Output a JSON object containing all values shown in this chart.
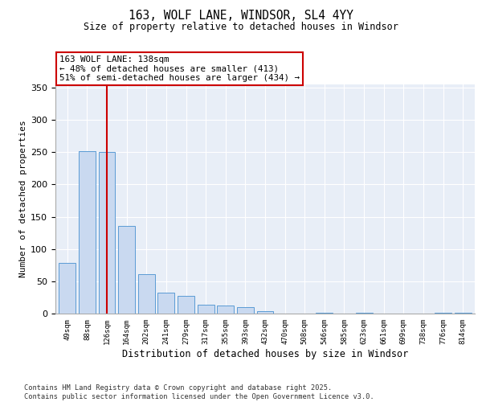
{
  "title_line1": "163, WOLF LANE, WINDSOR, SL4 4YY",
  "title_line2": "Size of property relative to detached houses in Windsor",
  "xlabel": "Distribution of detached houses by size in Windsor",
  "ylabel": "Number of detached properties",
  "categories": [
    "49sqm",
    "88sqm",
    "126sqm",
    "164sqm",
    "202sqm",
    "241sqm",
    "279sqm",
    "317sqm",
    "355sqm",
    "393sqm",
    "432sqm",
    "470sqm",
    "508sqm",
    "546sqm",
    "585sqm",
    "623sqm",
    "661sqm",
    "699sqm",
    "738sqm",
    "776sqm",
    "814sqm"
  ],
  "values": [
    79,
    252,
    250,
    136,
    61,
    33,
    28,
    14,
    12,
    10,
    4,
    0,
    0,
    1,
    0,
    1,
    0,
    0,
    0,
    1,
    1
  ],
  "bar_color": "#c9d9f0",
  "bar_edge_color": "#5b9bd5",
  "vline_x_index": 2,
  "vline_color": "#cc0000",
  "annotation_text": "163 WOLF LANE: 138sqm\n← 48% of detached houses are smaller (413)\n51% of semi-detached houses are larger (434) →",
  "annotation_box_color": "#ffffff",
  "annotation_box_edge": "#cc0000",
  "ylim": [
    0,
    355
  ],
  "yticks": [
    0,
    50,
    100,
    150,
    200,
    250,
    300,
    350
  ],
  "background_color": "#e8eef7",
  "grid_color": "#ffffff",
  "footer_line1": "Contains HM Land Registry data © Crown copyright and database right 2025.",
  "footer_line2": "Contains public sector information licensed under the Open Government Licence v3.0."
}
